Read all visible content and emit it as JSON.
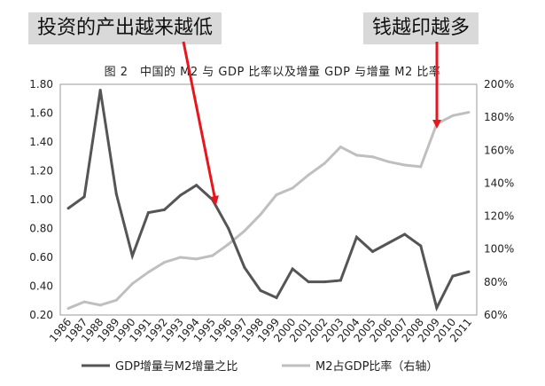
{
  "annotations": {
    "left": "投资的产出越来越低",
    "right": "钱越印越多"
  },
  "chart_data": {
    "type": "line",
    "title": "图 2　中国的 M2 与 GDP 比率以及增量 GDP 与增量 M2 比率",
    "x": [
      "1986",
      "1987",
      "1988",
      "1989",
      "1990",
      "1991",
      "1992",
      "1993",
      "1994",
      "1995",
      "1996",
      "1997",
      "1998",
      "1999",
      "2000",
      "2001",
      "2002",
      "2003",
      "2004",
      "2005",
      "2006",
      "2007",
      "2008",
      "2009",
      "2010",
      "2011"
    ],
    "left_axis": {
      "ylim": [
        0.2,
        1.8
      ],
      "ticks": [
        "0.20",
        "0.40",
        "0.60",
        "0.80",
        "1.00",
        "1.20",
        "1.40",
        "1.60",
        "1.80"
      ]
    },
    "right_axis": {
      "ylim": [
        60,
        200
      ],
      "ticks": [
        "60%",
        "80%",
        "100%",
        "120%",
        "140%",
        "160%",
        "180%",
        "200%"
      ]
    },
    "series": [
      {
        "name": "GDP增量与M2增量之比",
        "axis": "left",
        "color": "#555555",
        "values": [
          0.94,
          1.02,
          1.76,
          1.04,
          0.61,
          0.91,
          0.93,
          1.03,
          1.1,
          1.0,
          0.8,
          0.53,
          0.37,
          0.32,
          0.52,
          0.43,
          0.43,
          0.44,
          0.74,
          0.64,
          0.7,
          0.76,
          0.68,
          0.25,
          0.47,
          0.5
        ]
      },
      {
        "name": "M2占GDP比率（右轴）",
        "axis": "right",
        "color": "#bfbfbf",
        "values": [
          64,
          68,
          66,
          69,
          79,
          86,
          92,
          95,
          94,
          96,
          103,
          111,
          121,
          133,
          137,
          145,
          152,
          162,
          157,
          156,
          153,
          151,
          150,
          176,
          181,
          183
        ]
      }
    ],
    "grid": false,
    "legend": "bottom"
  },
  "colors": {
    "arrow": "#e8161c",
    "callout_bg": "#d9d9d9",
    "axis": "#888888"
  }
}
